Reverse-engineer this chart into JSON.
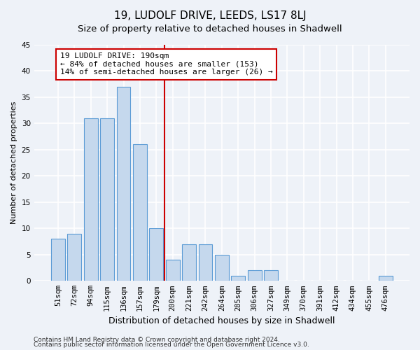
{
  "title": "19, LUDOLF DRIVE, LEEDS, LS17 8LJ",
  "subtitle": "Size of property relative to detached houses in Shadwell",
  "xlabel": "Distribution of detached houses by size in Shadwell",
  "ylabel": "Number of detached properties",
  "categories": [
    "51sqm",
    "72sqm",
    "94sqm",
    "115sqm",
    "136sqm",
    "157sqm",
    "179sqm",
    "200sqm",
    "221sqm",
    "242sqm",
    "264sqm",
    "285sqm",
    "306sqm",
    "327sqm",
    "349sqm",
    "370sqm",
    "391sqm",
    "412sqm",
    "434sqm",
    "455sqm",
    "476sqm"
  ],
  "values": [
    8,
    9,
    31,
    31,
    37,
    26,
    10,
    4,
    7,
    7,
    5,
    1,
    2,
    2,
    0,
    0,
    0,
    0,
    0,
    0,
    1
  ],
  "bar_color": "#c5d8ed",
  "bar_edge_color": "#5b9bd5",
  "vline_color": "#cc0000",
  "vline_x": 6.5,
  "annotation_text": "19 LUDOLF DRIVE: 190sqm\n← 84% of detached houses are smaller (153)\n14% of semi-detached houses are larger (26) →",
  "annotation_box_color": "#ffffff",
  "annotation_box_edge": "#cc0000",
  "ylim": [
    0,
    45
  ],
  "yticks": [
    0,
    5,
    10,
    15,
    20,
    25,
    30,
    35,
    40,
    45
  ],
  "footer_line1": "Contains HM Land Registry data © Crown copyright and database right 2024.",
  "footer_line2": "Contains public sector information licensed under the Open Government Licence v3.0.",
  "bg_color": "#eef2f8",
  "plot_bg_color": "#eef2f8",
  "grid_color": "#ffffff",
  "title_fontsize": 11,
  "subtitle_fontsize": 9.5,
  "xlabel_fontsize": 9,
  "ylabel_fontsize": 8,
  "tick_fontsize": 7.5,
  "annotation_fontsize": 8,
  "footer_fontsize": 6.5
}
